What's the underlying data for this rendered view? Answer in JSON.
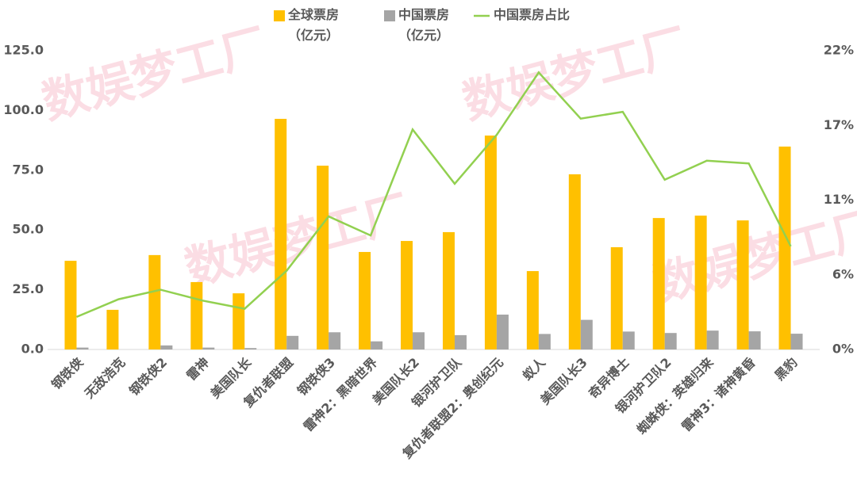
{
  "watermark": "数娱梦工厂",
  "chart_data": {
    "type": "bar-line",
    "categories": [
      "钢铁侠",
      "无敌浩克",
      "钢铁侠2",
      "雷神",
      "美国队长",
      "复仇者联盟",
      "钢铁侠3",
      "雷神2：黑暗世界",
      "美国队长2",
      "银河护卫队",
      "复仇者联盟2：奥创纪元",
      "蚁人",
      "美国队长3",
      "奇异博士",
      "银河护卫队2",
      "蜘蛛侠：英雄归来",
      "雷神3：诸神黄昏",
      "黑豹"
    ],
    "series": [
      {
        "name": "全球票房\n（亿元）",
        "type": "bar",
        "color": "#FFC000",
        "values": [
          37.1,
          16.6,
          39.5,
          28.2,
          23.5,
          96.5,
          76.9,
          40.8,
          45.4,
          49.1,
          89.5,
          32.8,
          73.3,
          42.8,
          55.0,
          56.0,
          54.0,
          84.9
        ]
      },
      {
        "name": "中国票房\n（亿元）",
        "type": "bar",
        "color": "#A5A5A5",
        "values": [
          0.8,
          0,
          1.7,
          0.8,
          0.6,
          5.7,
          7.2,
          3.4,
          7.2,
          6.0,
          14.6,
          6.5,
          12.4,
          7.5,
          6.9,
          7.9,
          7.6,
          6.6
        ]
      },
      {
        "name": "中国票房占比",
        "type": "line",
        "axis": "y2",
        "color": "#92D050",
        "values": [
          2.4,
          3.7,
          4.4,
          3.6,
          3.0,
          5.8,
          9.8,
          8.4,
          16.2,
          12.2,
          15.8,
          20.4,
          17.0,
          17.5,
          12.5,
          13.9,
          13.7,
          7.6
        ]
      }
    ],
    "ylim": [
      0,
      125
    ],
    "yticks": [
      {
        "value": 0,
        "label": "0.0"
      },
      {
        "value": 25,
        "label": "25.0"
      },
      {
        "value": 50,
        "label": "50.0"
      },
      {
        "value": 75,
        "label": "75.0"
      },
      {
        "value": 100,
        "label": "100.0"
      },
      {
        "value": 125,
        "label": "125.0"
      }
    ],
    "y2lim": [
      0,
      22
    ],
    "y2ticks": [
      {
        "value": 0,
        "label": "0%"
      },
      {
        "value": 5.5,
        "label": "6%"
      },
      {
        "value": 11,
        "label": "11%"
      },
      {
        "value": 16.5,
        "label": "17%"
      },
      {
        "value": 22,
        "label": "22%"
      }
    ],
    "legend": "top"
  }
}
